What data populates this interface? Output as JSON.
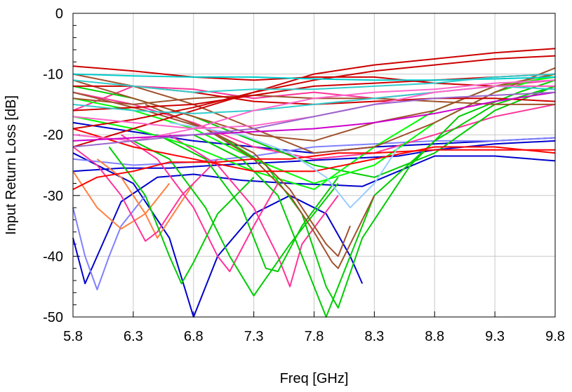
{
  "chart_data": {
    "type": "line",
    "title": "",
    "xlabel": "Freq [GHz]",
    "ylabel": "Input Return Loss [dB]",
    "xlim": [
      5.8,
      9.8
    ],
    "ylim": [
      -50,
      0
    ],
    "xticks": [
      5.8,
      6.3,
      6.8,
      7.3,
      7.8,
      8.3,
      8.8,
      9.3,
      9.8
    ],
    "yticks": [
      0,
      -10,
      -20,
      -30,
      -40,
      -50
    ],
    "xtick_labels": [
      "5.8",
      "6.3",
      "6.8",
      "7.3",
      "7.8",
      "8.3",
      "8.8",
      "9.3",
      "9.8"
    ],
    "ytick_labels": [
      "0",
      "-10",
      "-20",
      "-30",
      "-40",
      "-50"
    ],
    "grid": true,
    "legend": "none",
    "series": [
      {
        "color": "#0000cc",
        "x": [
          5.8,
          5.9,
          6.0,
          6.2,
          6.5,
          6.8,
          7.2,
          7.6,
          8.0,
          8.2,
          8.5,
          8.8,
          9.3,
          9.8
        ],
        "y": [
          -37,
          -44.5,
          -40,
          -31,
          -27,
          -26.5,
          -27.5,
          -28,
          -28.3,
          -28.5,
          -26,
          -23.5,
          -23.5,
          -24.3
        ]
      },
      {
        "color": "#0000cc",
        "x": [
          5.8,
          6.0,
          6.3,
          6.6,
          6.8,
          7.0,
          7.3,
          7.6,
          7.9,
          8.1,
          8.2
        ],
        "y": [
          -23,
          -25,
          -28,
          -37,
          -50,
          -40,
          -33,
          -30,
          -33,
          -40,
          -44.5
        ]
      },
      {
        "color": "#0000cc",
        "x": [
          5.8,
          6.2,
          6.6,
          7.0,
          7.5,
          8.0,
          8.5,
          8.8,
          9.3,
          9.8
        ],
        "y": [
          -26,
          -25.5,
          -25.5,
          -25,
          -24.5,
          -24,
          -23.5,
          -22.5,
          -21.5,
          -21
        ]
      },
      {
        "color": "#0000cc",
        "x": [
          5.8,
          6.3,
          6.8,
          7.3,
          7.8,
          8.3,
          8.8,
          9.3,
          9.8
        ],
        "y": [
          -18,
          -19.5,
          -21,
          -22,
          -23,
          -22,
          -21.5,
          -21,
          -20.5
        ]
      },
      {
        "color": "#8080ff",
        "x": [
          5.8,
          5.9,
          6.0,
          6.1,
          6.2,
          6.4
        ],
        "y": [
          -32,
          -40,
          -45.5,
          -40,
          -35,
          -30
        ]
      },
      {
        "color": "#8080ff",
        "x": [
          5.8,
          6.3,
          6.8,
          7.3,
          7.8,
          8.3,
          8.8,
          9.3,
          9.8
        ],
        "y": [
          -24,
          -25,
          -24.5,
          -23.5,
          -22,
          -21.5,
          -21,
          -21,
          -20.5
        ]
      },
      {
        "color": "#ff8040",
        "x": [
          5.8,
          6.0,
          6.2,
          6.4,
          6.6
        ],
        "y": [
          -26,
          -32,
          -35.5,
          -33,
          -28
        ]
      },
      {
        "color": "#ff8040",
        "x": [
          6.0,
          6.2,
          6.4,
          6.5,
          6.6,
          6.8
        ],
        "y": [
          -24,
          -27,
          -33,
          -37,
          -34,
          -28
        ]
      },
      {
        "color": "#ff3399",
        "x": [
          5.8,
          6.0,
          6.2,
          6.4,
          6.5,
          6.7,
          7.0
        ],
        "y": [
          -22,
          -25,
          -30,
          -37.5,
          -36,
          -30,
          -24
        ]
      },
      {
        "color": "#ff3399",
        "x": [
          6.2,
          6.5,
          6.8,
          7.0,
          7.1,
          7.3,
          7.5
        ],
        "y": [
          -20,
          -24,
          -32,
          -40,
          -42.5,
          -35,
          -28
        ]
      },
      {
        "color": "#ff3399",
        "x": [
          6.6,
          7.0,
          7.3,
          7.5,
          7.6,
          7.7,
          8.0
        ],
        "y": [
          -20,
          -25,
          -32,
          -40,
          -45,
          -38,
          -30
        ]
      },
      {
        "color": "#ff3399",
        "x": [
          5.8,
          6.3,
          6.8,
          7.3,
          7.8,
          8.3,
          8.8,
          9.3,
          9.8
        ],
        "y": [
          -13,
          -15,
          -18,
          -22,
          -24,
          -23,
          -20,
          -17,
          -15
        ]
      },
      {
        "color": "#ff3399",
        "x": [
          5.8,
          6.3,
          6.8,
          7.3,
          7.8,
          8.3,
          8.8,
          9.3,
          9.8
        ],
        "y": [
          -16,
          -12,
          -12.5,
          -14,
          -13,
          -14,
          -13,
          -12,
          -11
        ]
      },
      {
        "color": "#00cc00",
        "x": [
          6.1,
          6.4,
          6.6,
          6.7,
          6.8,
          7.0,
          7.3
        ],
        "y": [
          -22,
          -30,
          -40,
          -44.5,
          -41,
          -33,
          -27
        ]
      },
      {
        "color": "#00cc00",
        "x": [
          6.3,
          6.6,
          6.9,
          7.1,
          7.3,
          7.6,
          8.0
        ],
        "y": [
          -21,
          -24,
          -32,
          -40,
          -46.5,
          -38,
          -28
        ]
      },
      {
        "color": "#00cc00",
        "x": [
          6.5,
          6.9,
          7.2,
          7.4,
          7.5,
          7.7,
          8.0
        ],
        "y": [
          -20,
          -24,
          -32,
          -42,
          -42.5,
          -35,
          -27
        ]
      },
      {
        "color": "#00cc00",
        "x": [
          6.8,
          7.2,
          7.5,
          7.7,
          7.9,
          8.0,
          8.3,
          8.8,
          9.3,
          9.8
        ],
        "y": [
          -20,
          -24,
          -30,
          -40,
          -50,
          -45,
          -30,
          -21,
          -15,
          -12
        ]
      },
      {
        "color": "#00cc00",
        "x": [
          7.0,
          7.4,
          7.7,
          7.9,
          8.0,
          8.2,
          8.6,
          9.0,
          9.5,
          9.8
        ],
        "y": [
          -20,
          -25,
          -33,
          -45,
          -48.5,
          -37,
          -25,
          -17,
          -13,
          -11
        ]
      },
      {
        "color": "#00cc00",
        "x": [
          5.8,
          6.3,
          6.8,
          7.3,
          7.8,
          8.3,
          8.8,
          9.3,
          9.8
        ],
        "y": [
          -12,
          -14,
          -17,
          -21,
          -25,
          -27,
          -23,
          -16,
          -12
        ]
      },
      {
        "color": "#00ff00",
        "x": [
          5.8,
          6.3,
          6.8,
          7.3,
          7.8,
          8.3,
          8.8,
          9.3,
          9.8
        ],
        "y": [
          -14,
          -16,
          -19,
          -24,
          -28,
          -25,
          -18,
          -13,
          -10
        ]
      },
      {
        "color": "#00ff00",
        "x": [
          5.8,
          6.3,
          6.8,
          7.3,
          7.8,
          8.3,
          8.8,
          9.3,
          9.8
        ],
        "y": [
          -17,
          -19,
          -22,
          -26,
          -29,
          -22,
          -16,
          -12,
          -10.5
        ]
      },
      {
        "color": "#a0522d",
        "x": [
          6.4,
          6.9,
          7.3,
          7.6,
          7.8,
          7.95,
          8.0,
          8.1,
          8.3
        ],
        "y": [
          -15,
          -19,
          -24,
          -30,
          -36,
          -41,
          -42,
          -38,
          -30
        ]
      },
      {
        "color": "#a0522d",
        "x": [
          5.8,
          6.4,
          6.9,
          7.3,
          7.6,
          7.9,
          8.0,
          8.1
        ],
        "y": [
          -13,
          -16,
          -19,
          -23,
          -29,
          -38,
          -40,
          -35
        ]
      },
      {
        "color": "#a0522d",
        "x": [
          5.8,
          6.3,
          6.8,
          7.3,
          7.8,
          8.3,
          8.8,
          9.3,
          9.8
        ],
        "y": [
          -10,
          -12,
          -15,
          -19,
          -23,
          -22,
          -18,
          -13,
          -9
        ]
      },
      {
        "color": "#a0522d",
        "x": [
          5.8,
          6.3,
          6.8,
          7.3,
          7.8,
          8.3,
          8.8,
          9.3,
          9.8
        ],
        "y": [
          -14,
          -15,
          -14,
          -13.5,
          -14,
          -14,
          -14.5,
          -15,
          -15
        ]
      },
      {
        "color": "#a0522d",
        "x": [
          5.8,
          6.3,
          6.8,
          7.3,
          7.8,
          8.3,
          8.8,
          9.3,
          9.8
        ],
        "y": [
          -11,
          -14,
          -17,
          -20,
          -21,
          -18,
          -16,
          -12,
          -10
        ]
      },
      {
        "color": "#ff0000",
        "x": [
          5.8,
          6.0,
          6.3,
          6.6,
          7.0,
          7.3,
          7.6,
          8.0,
          8.3,
          8.8,
          9.3,
          9.8
        ],
        "y": [
          -29,
          -27,
          -26,
          -24.5,
          -24.5,
          -24,
          -24,
          -23,
          -23,
          -22.5,
          -22.5,
          -22.5
        ]
      },
      {
        "color": "#ff0000",
        "x": [
          5.8,
          6.3,
          6.8,
          7.3,
          7.8,
          8.3,
          8.8,
          9.3,
          9.8
        ],
        "y": [
          -19,
          -22,
          -24,
          -26,
          -26,
          -24,
          -22,
          -22,
          -23
        ]
      },
      {
        "color": "#cc0000",
        "x": [
          5.8,
          6.3,
          6.8,
          7.3,
          7.8,
          8.3,
          8.8,
          9.3,
          9.8
        ],
        "y": [
          -22,
          -19,
          -16,
          -13,
          -10,
          -8.5,
          -7.5,
          -6.5,
          -5.8
        ]
      },
      {
        "color": "#cc0000",
        "x": [
          5.8,
          6.3,
          6.8,
          7.3,
          7.8,
          8.3,
          8.8,
          9.3,
          9.8
        ],
        "y": [
          -19,
          -17.5,
          -15.5,
          -13,
          -11,
          -9.5,
          -8.5,
          -7.5,
          -7
        ]
      },
      {
        "color": "#cc0000",
        "x": [
          5.8,
          6.3,
          6.8,
          7.3,
          7.8,
          8.3,
          8.8,
          9.3,
          9.8
        ],
        "y": [
          -16,
          -15.5,
          -15,
          -13.5,
          -12,
          -11.5,
          -11,
          -10.5,
          -10
        ]
      },
      {
        "color": "#cc0000",
        "x": [
          5.8,
          6.3,
          6.8,
          7.3,
          7.8,
          8.3,
          8.8,
          9.3,
          9.8
        ],
        "y": [
          -8.7,
          -9.5,
          -10.5,
          -11,
          -10.5,
          -10.5,
          -11.5,
          -12,
          -12
        ]
      },
      {
        "color": "#cc0000",
        "x": [
          5.8,
          6.3,
          6.8,
          7.3,
          7.8,
          8.3,
          8.8,
          9.3,
          9.8
        ],
        "y": [
          -12,
          -12,
          -13,
          -14.5,
          -15,
          -14.5,
          -14,
          -14,
          -14.5
        ]
      },
      {
        "color": "#00cccc",
        "x": [
          5.8,
          6.3,
          6.8,
          7.3,
          7.8,
          8.3,
          8.8,
          9.3,
          9.8
        ],
        "y": [
          -10,
          -10.3,
          -10.5,
          -10.5,
          -10.8,
          -11,
          -11,
          -10.8,
          -10.5
        ]
      },
      {
        "color": "#33cccc",
        "x": [
          5.8,
          6.3,
          6.8,
          7.3,
          7.8,
          8.3,
          8.8,
          9.3,
          9.8
        ],
        "y": [
          -11,
          -12,
          -13,
          -12.5,
          -12.5,
          -12,
          -11.5,
          -10.5,
          -10
        ]
      },
      {
        "color": "#33cccc",
        "x": [
          5.8,
          6.3,
          6.8,
          7.3,
          7.8,
          8.3,
          8.8,
          9.3,
          9.8
        ],
        "y": [
          -15,
          -16,
          -16.5,
          -16,
          -15,
          -14,
          -13,
          -12,
          -12.5
        ]
      },
      {
        "color": "#99ccff",
        "x": [
          6.6,
          7.2,
          7.6,
          7.9,
          8.1,
          8.3,
          8.5
        ],
        "y": [
          -18,
          -20,
          -23,
          -27,
          -32,
          -28,
          -22
        ]
      },
      {
        "color": "#ff66cc",
        "x": [
          5.8,
          6.3,
          6.8,
          7.3,
          7.8,
          8.3,
          8.8,
          9.3,
          9.8
        ],
        "y": [
          -20,
          -21,
          -19,
          -16,
          -14,
          -13,
          -12.5,
          -11.5,
          -11
        ]
      },
      {
        "color": "#ff66cc",
        "x": [
          5.8,
          6.3,
          6.8,
          7.3,
          7.8,
          8.3,
          8.8,
          9.3,
          9.8
        ],
        "y": [
          -17,
          -18,
          -19,
          -18.5,
          -17,
          -15,
          -13,
          -12,
          -12
        ]
      },
      {
        "color": "#cc00cc",
        "x": [
          5.8,
          6.3,
          6.8,
          7.3,
          7.8,
          8.3,
          8.8,
          9.3,
          9.8
        ],
        "y": [
          -21,
          -20.5,
          -20,
          -19.5,
          -19,
          -18,
          -16.5,
          -14.5,
          -13
        ]
      },
      {
        "color": "#9966cc",
        "x": [
          5.8,
          6.3,
          6.8,
          7.3,
          7.8,
          8.3,
          8.8,
          9.3,
          9.8
        ],
        "y": [
          -22,
          -21,
          -20,
          -19,
          -17,
          -15,
          -14,
          -13.5,
          -13
        ]
      }
    ]
  }
}
